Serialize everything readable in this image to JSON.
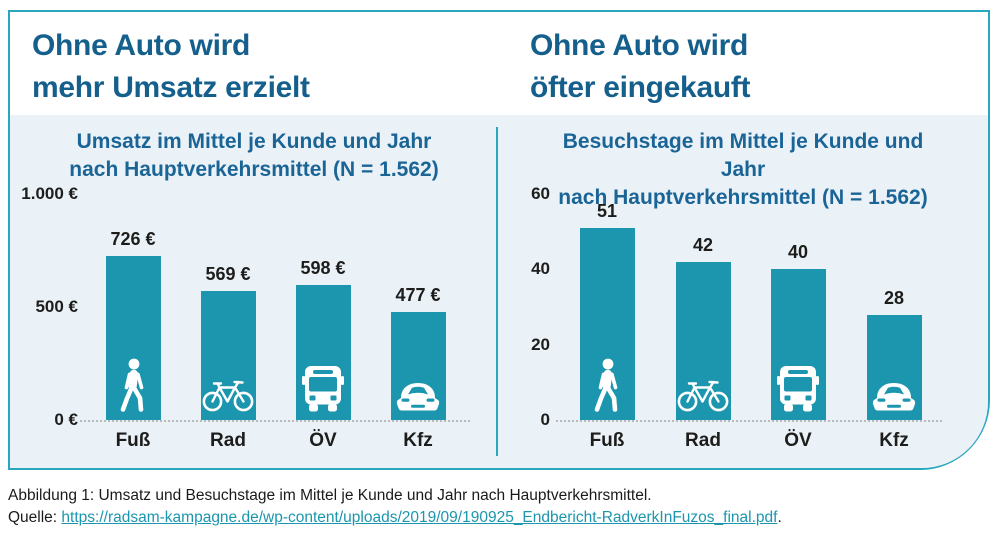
{
  "colors": {
    "teal": "#1B96AE",
    "border_teal": "#2BA6BF",
    "panel_bg": "#EAF2F8",
    "heading_blue": "#155F8C",
    "title_blue": "#1B6496",
    "text_dark": "#1D1D1B",
    "axis_gray": "#B9B9B9",
    "link_teal": "#1B96AE"
  },
  "headings": {
    "left_line1": "Ohne Auto wird",
    "left_line2": "mehr Umsatz erzielt",
    "right_line1": "Ohne Auto wird",
    "right_line2": "öfter eingekauft"
  },
  "caption": {
    "figure": "Abbildung 1: Umsatz und Besuchstage im Mittel je Kunde und Jahr nach Hauptverkehrsmittel.",
    "source_prefix": "Quelle: ",
    "source_link": "https://radsam-kampagne.de/wp-content/uploads/2019/09/190925_Endbericht-RadverkInFuzos_final.pdf",
    "source_suffix": "."
  },
  "chart_data": [
    {
      "type": "bar",
      "title_line1": "Umsatz im Mittel je Kunde und Jahr",
      "title_line2": "nach Hauptverkehrsmittel (N = 1.562)",
      "categories": [
        "Fuß",
        "Rad",
        "ÖV",
        "Kfz"
      ],
      "values": [
        726,
        569,
        598,
        477
      ],
      "value_labels": [
        "726 €",
        "569 €",
        "598 €",
        "477 €"
      ],
      "icons": [
        "pedestrian",
        "bicycle",
        "bus",
        "car"
      ],
      "yticks": [
        {
          "value": 0,
          "label": "0 €"
        },
        {
          "value": 500,
          "label": "500 €"
        },
        {
          "value": 1000,
          "label": "1.000 €"
        }
      ],
      "ylim": [
        0,
        1000
      ],
      "xlabel": "",
      "ylabel": "",
      "grid": false,
      "legend": false
    },
    {
      "type": "bar",
      "title_line1": "Besuchstage im Mittel je Kunde und Jahr",
      "title_line2": "nach Hauptverkehrsmittel (N = 1.562)",
      "categories": [
        "Fuß",
        "Rad",
        "ÖV",
        "Kfz"
      ],
      "values": [
        51,
        42,
        40,
        28
      ],
      "value_labels": [
        "51",
        "42",
        "40",
        "28"
      ],
      "icons": [
        "pedestrian",
        "bicycle",
        "bus",
        "car"
      ],
      "yticks": [
        {
          "value": 0,
          "label": "0"
        },
        {
          "value": 20,
          "label": "20"
        },
        {
          "value": 40,
          "label": "40"
        },
        {
          "value": 60,
          "label": "60"
        }
      ],
      "ylim": [
        0,
        60
      ],
      "xlabel": "",
      "ylabel": "",
      "grid": false,
      "legend": false
    }
  ]
}
